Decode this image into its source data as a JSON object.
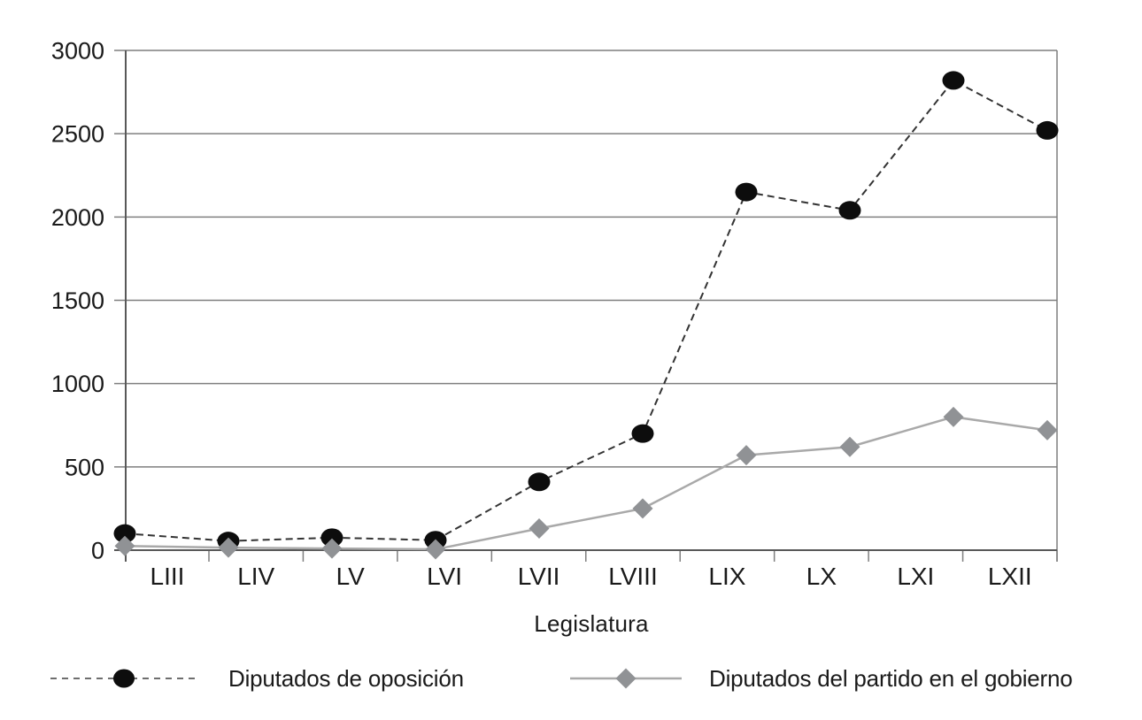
{
  "chart_data": {
    "type": "line",
    "title": "",
    "xlabel": "Legislatura",
    "ylabel": "",
    "ylim": [
      0,
      3000
    ],
    "ytick_interval": 500,
    "ytick_labels": [
      "0",
      "500",
      "1000",
      "1500",
      "2000",
      "2500",
      "3000"
    ],
    "categories": [
      "LIII",
      "LIV",
      "LV",
      "LVI",
      "LVII",
      "LVIII",
      "LIX",
      "LX",
      "LXI",
      "LXII"
    ],
    "grid": "horizontal gridlines on, outside tick marks, right border on",
    "legend_position": "bottom",
    "series": [
      {
        "name": "Diputados de oposición",
        "values": [
          100,
          55,
          75,
          60,
          410,
          700,
          2150,
          2040,
          2820,
          2520
        ],
        "line_style": "dashed",
        "marker": "circle",
        "line_color": "#333333",
        "marker_color": "#0d0d0d"
      },
      {
        "name": "Diputados del partido en el gobierno",
        "values": [
          25,
          15,
          10,
          5,
          130,
          250,
          570,
          620,
          800,
          720
        ],
        "line_style": "solid",
        "marker": "diamond",
        "line_color": "#a9a9a9",
        "marker_color": "#909295"
      }
    ]
  },
  "colors": {
    "grid": "#7f7f7f",
    "axis": "#595959",
    "text": "#1a1a1a",
    "legend_dash_sample": "#6e6e6e",
    "background": "#ffffff"
  }
}
